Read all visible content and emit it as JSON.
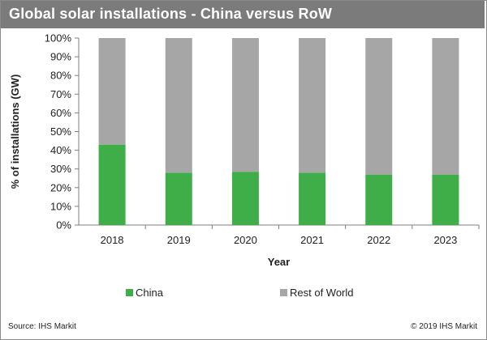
{
  "header": {
    "title": "Global solar installations - China versus  RoW"
  },
  "footer": {
    "source": "Source:  IHS Markit",
    "copyright": "© 2019  IHS Markit"
  },
  "colors": {
    "china": "#3fae49",
    "rest_of_world": "#a6a6a6",
    "title_bar": "#7b7b7b",
    "axis": "#7f7f7f"
  },
  "chart_data": {
    "type": "bar",
    "stacked": true,
    "categories": [
      "2018",
      "2019",
      "2020",
      "2021",
      "2022",
      "2023"
    ],
    "series": [
      {
        "name": "China",
        "values": [
          43,
          28,
          28.5,
          28,
          27,
          27
        ]
      },
      {
        "name": "Rest of World",
        "values": [
          57,
          72,
          71.5,
          72,
          73,
          73
        ]
      }
    ],
    "ylim": [
      0,
      100
    ],
    "yticks": [
      "0%",
      "10%",
      "20%",
      "30%",
      "40%",
      "50%",
      "60%",
      "70%",
      "80%",
      "90%",
      "100%"
    ],
    "xlabel": "Year",
    "ylabel": "% of installations (GW)",
    "legend": [
      "China",
      "Rest of World"
    ],
    "legend_position": "bottom",
    "grid": false
  }
}
